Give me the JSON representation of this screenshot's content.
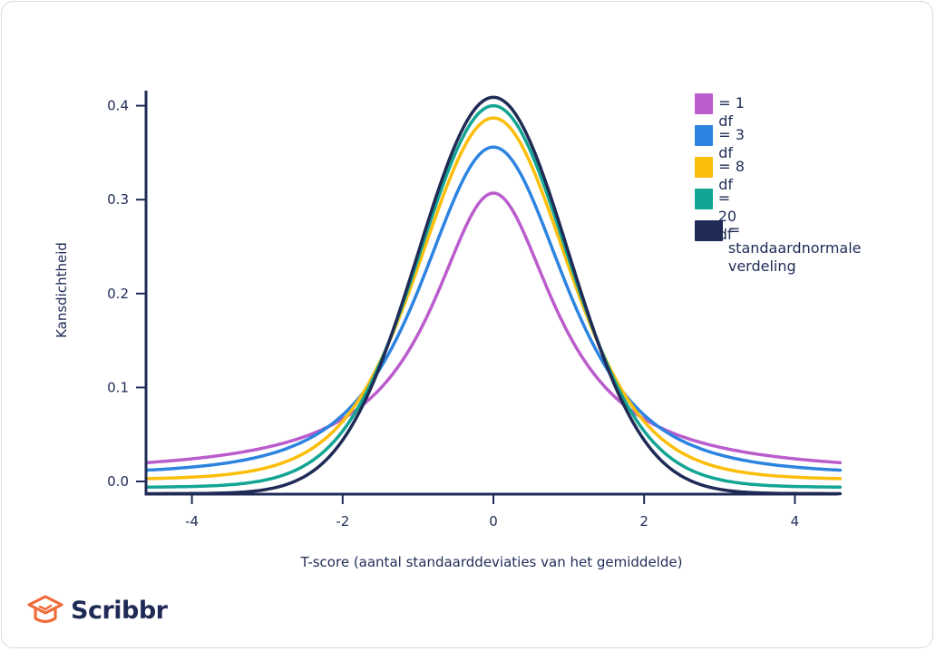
{
  "chart_data": {
    "type": "line",
    "xlabel": "T-score (aantal standaarddeviaties van het gemiddelde)",
    "ylabel": "Kansdichtheid",
    "xlim": [
      -4.6,
      4.6
    ],
    "ylim": [
      0.0,
      0.41
    ],
    "x_ticks": [
      -4,
      -2,
      0,
      2,
      4
    ],
    "x_tick_labels": [
      "-4",
      "-2",
      "0",
      "2",
      "4"
    ],
    "y_ticks": [
      0.0,
      0.1,
      0.2,
      0.3,
      0.4
    ],
    "y_tick_labels": [
      "0.0",
      "0.1",
      "0.2",
      "0.3",
      "0.4"
    ],
    "legend_position": "top-right",
    "series": [
      {
        "name": "= 1 df",
        "df": 1,
        "color": "#bb5ccc",
        "peak": 0.307,
        "tail": 0.02
      },
      {
        "name": "= 3 df",
        "df": 3,
        "color": "#2d84e0",
        "peak": 0.356,
        "tail": 0.012
      },
      {
        "name": "= 8 df",
        "df": 8,
        "color": "#fbbe0a",
        "peak": 0.387,
        "tail": 0.003
      },
      {
        "name": "= 20 df",
        "df": 20,
        "color": "#13a593",
        "peak": 0.4,
        "tail": -0.006
      },
      {
        "name": "= standaardnormale verdeling",
        "df": "normal",
        "color": "#1f2b56",
        "peak": 0.409,
        "tail": -0.013
      }
    ]
  },
  "legend": {
    "items": [
      {
        "label": "= 1 df",
        "color": "#bb5ccc"
      },
      {
        "label": "= 3 df",
        "color": "#2d84e0"
      },
      {
        "label": "= 8 df",
        "color": "#fbbe0a"
      },
      {
        "label": "= 20 df",
        "color": "#13a593"
      },
      {
        "label_line1": "= standaardnormale",
        "label_line2": "verdeling",
        "color": "#1f2b56"
      }
    ]
  },
  "brand": {
    "name": "Scribbr",
    "logo_color": "#f26b3a"
  },
  "colors": {
    "axis": "#1f2b56",
    "text": "#1f2b56",
    "background": "#ffffff"
  }
}
